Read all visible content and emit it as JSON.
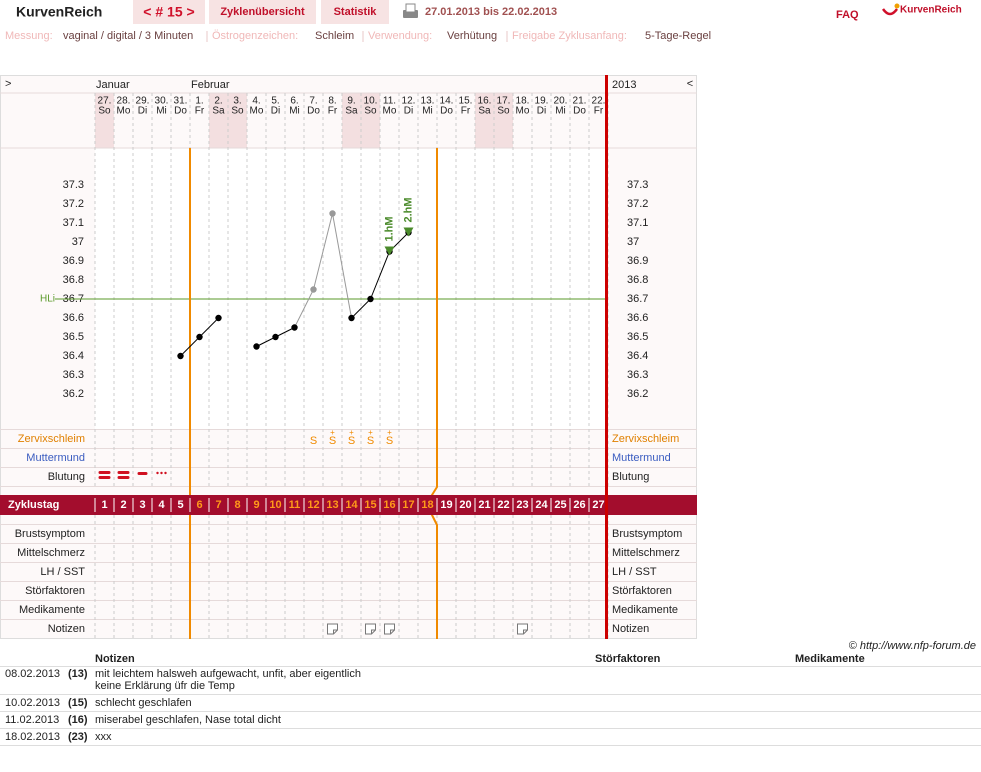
{
  "header": {
    "logo": "KurvenReich",
    "cycle_nav": "< # 15 >",
    "tabs": [
      "Zyklenübersicht",
      "Statistik"
    ],
    "period": "27.01.2013 bis 22.02.2013",
    "faq": "FAQ",
    "brand": "KurvenReich"
  },
  "settings": [
    {
      "label": "Messung:",
      "value": "vaginal / digital / 3 Minuten"
    },
    {
      "label": "Östrogenzeichen:",
      "value": "Schleim"
    },
    {
      "label": "Verwendung:",
      "value": "Verhütung"
    },
    {
      "label": "Freigabe Zyklusanfang:",
      "value": "5-Tage-Regel"
    }
  ],
  "chart_data": {
    "type": "line",
    "nav_left": ">",
    "nav_right": "<",
    "year": "2013",
    "month_labels": [
      "Januar",
      null,
      null,
      null,
      null,
      "Februar",
      null,
      null,
      null,
      null,
      null,
      null,
      null,
      null,
      null,
      null,
      null,
      null,
      null,
      null,
      null,
      null,
      null,
      null,
      null,
      null,
      null
    ],
    "dates": [
      "27.",
      "28.",
      "29.",
      "30.",
      "31.",
      "1.",
      "2.",
      "3.",
      "4.",
      "5.",
      "6.",
      "7.",
      "8.",
      "9.",
      "10.",
      "11.",
      "12.",
      "13.",
      "14.",
      "15.",
      "16.",
      "17.",
      "18.",
      "19.",
      "20.",
      "21.",
      "22."
    ],
    "weekdays": [
      "So",
      "Mo",
      "Di",
      "Mi",
      "Do",
      "Fr",
      "Sa",
      "So",
      "Mo",
      "Di",
      "Mi",
      "Do",
      "Fr",
      "Sa",
      "So",
      "Mo",
      "Di",
      "Mi",
      "Do",
      "Fr",
      "Sa",
      "So",
      "Mo",
      "Di",
      "Mi",
      "Do",
      "Fr"
    ],
    "cycle_days": [
      1,
      2,
      3,
      4,
      5,
      6,
      7,
      8,
      9,
      10,
      11,
      12,
      13,
      14,
      15,
      16,
      17,
      18,
      19,
      20,
      21,
      22,
      23,
      24,
      25,
      26,
      27
    ],
    "ylim": [
      36.0,
      37.5
    ],
    "yticks": [
      36.2,
      36.3,
      36.4,
      36.5,
      36.6,
      36.7,
      36.8,
      36.9,
      37,
      37.1,
      37.2,
      37.3
    ],
    "values": [
      null,
      null,
      null,
      null,
      36.4,
      36.5,
      36.6,
      null,
      36.45,
      36.5,
      36.55,
      36.75,
      37.15,
      36.6,
      36.7,
      36.95,
      37.05,
      null,
      null,
      null,
      null,
      null,
      null,
      null,
      null,
      null,
      null
    ],
    "color": "#000000",
    "point_colors": [
      null,
      null,
      null,
      null,
      "#000000",
      "#000000",
      "#000000",
      null,
      "#000000",
      "#000000",
      "#000000",
      "#999999",
      "#999999",
      "#000000",
      "#000000",
      "#000000",
      "#000000",
      null,
      null,
      null,
      null,
      null,
      null,
      null,
      null,
      null,
      null
    ],
    "coverline": {
      "label": "HLi",
      "value": 36.7,
      "color": "#5a9a2a"
    },
    "annotations": [
      {
        "label": "1.hM",
        "cycle_day": 16
      },
      {
        "label": "2.hM",
        "cycle_day": 17
      }
    ],
    "annotation_color": "#4a8a2a",
    "row_labels": {
      "mucus": "Zervixschleim",
      "cervix": "Muttermund",
      "bleeding": "Blutung",
      "cycle": "Zyklustag",
      "bottom": [
        "Brustsymptom",
        "Mittelschmerz",
        "LH / SST",
        "Störfaktoren",
        "Medikamente",
        "Notizen"
      ]
    },
    "mucus": [
      null,
      null,
      null,
      null,
      null,
      null,
      null,
      null,
      null,
      null,
      null,
      "S",
      "S+",
      "S+",
      "S+",
      "S+",
      null,
      null,
      null,
      null,
      null,
      null,
      null,
      null,
      null,
      null,
      null
    ],
    "bleeding": [
      3,
      3,
      2,
      1,
      null,
      null,
      null,
      null,
      null,
      null,
      null,
      null,
      null,
      null,
      null,
      null,
      null,
      null,
      null,
      null,
      null,
      null,
      null,
      null,
      null,
      null,
      null
    ],
    "highlight": {
      "from": 6,
      "to": 18,
      "color": "#ff9a1a"
    },
    "grid": true
  },
  "copyright": "© http://www.nfp-forum.de",
  "notes_table": {
    "headers": [
      "Notizen",
      "Störfaktoren",
      "Medikamente"
    ],
    "rows": [
      {
        "date": "08.02.2013",
        "cycle_day": 13,
        "cycle_label": "(13)",
        "text": [
          "mit leichtem halsweh aufgewacht, unfit, aber eigentlich",
          "keine Erklärung üfr die Temp"
        ]
      },
      {
        "date": "10.02.2013",
        "cycle_day": 15,
        "cycle_label": "(15)",
        "text": [
          "schlecht geschlafen"
        ]
      },
      {
        "date": "11.02.2013",
        "cycle_day": 16,
        "cycle_label": "(16)",
        "text": [
          "miserabel geschlafen, Nase total dicht"
        ]
      },
      {
        "date": "18.02.2013",
        "cycle_day": 23,
        "cycle_label": "(23)",
        "text": [
          "xxx"
        ]
      }
    ]
  }
}
